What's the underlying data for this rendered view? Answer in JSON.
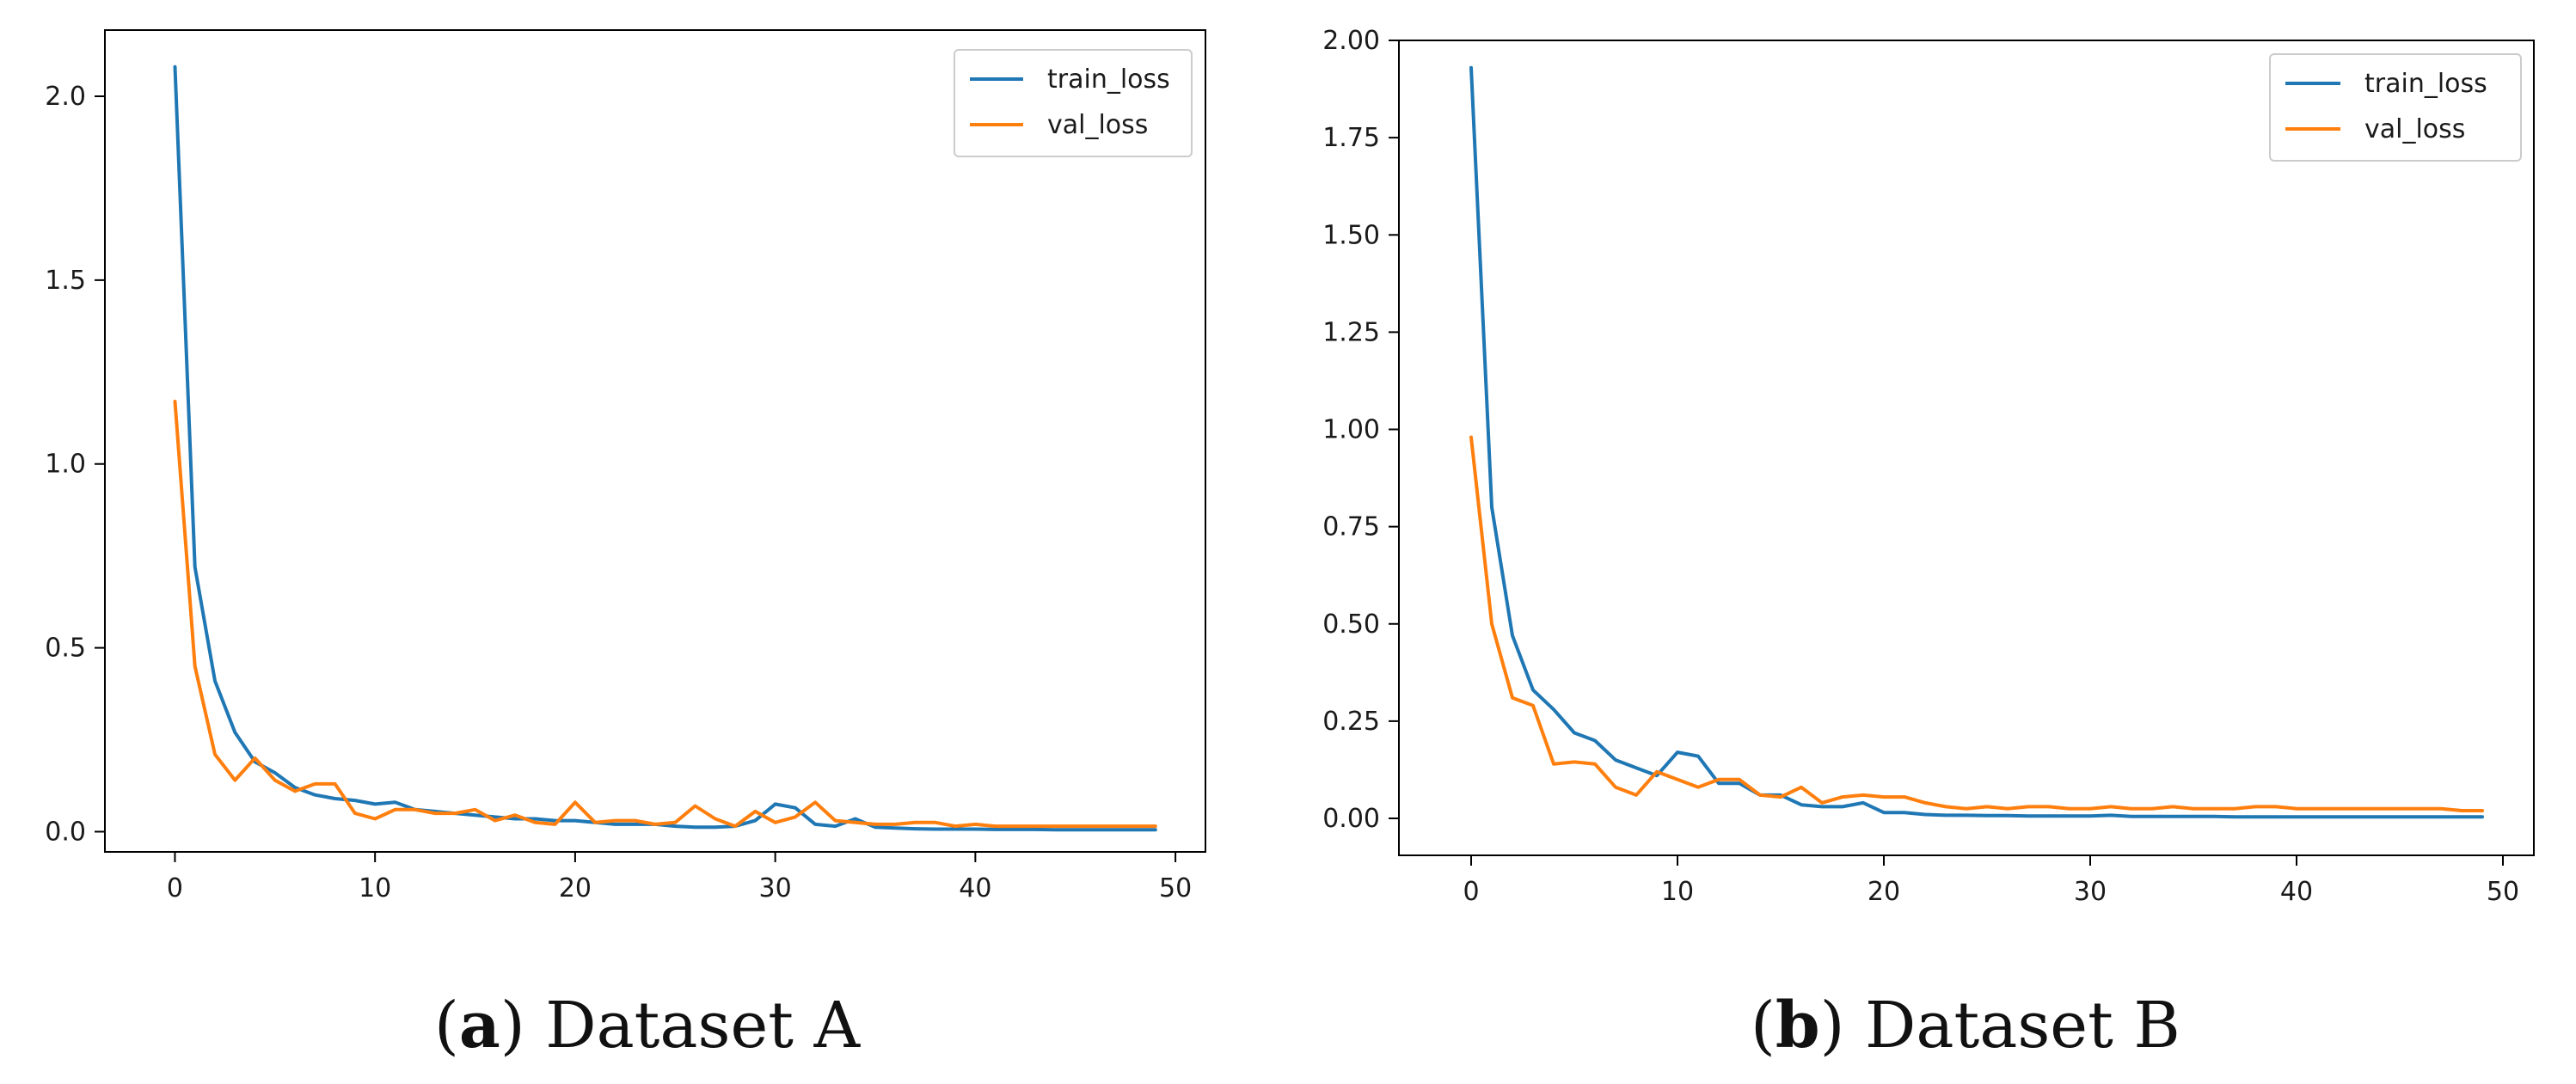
{
  "chart_data": [
    {
      "type": "line",
      "panel_label": "a",
      "caption": "Dataset A",
      "xlim": [
        -3.5,
        51.5
      ],
      "ylim": [
        -0.055,
        2.18
      ],
      "xticks": [
        0,
        10,
        20,
        30,
        40,
        50
      ],
      "yticks": [
        0.0,
        0.5,
        1.0,
        1.5,
        2.0
      ],
      "ytick_labels": [
        "0.0",
        "0.5",
        "1.0",
        "1.5",
        "2.0"
      ],
      "legend_position": "top-right",
      "series": [
        {
          "name": "train_loss",
          "color": "#1f77b4",
          "values": [
            2.08,
            0.72,
            0.41,
            0.27,
            0.19,
            0.16,
            0.12,
            0.1,
            0.09,
            0.085,
            0.075,
            0.08,
            0.06,
            0.055,
            0.05,
            0.045,
            0.04,
            0.035,
            0.035,
            0.03,
            0.03,
            0.025,
            0.02,
            0.02,
            0.02,
            0.015,
            0.012,
            0.012,
            0.015,
            0.03,
            0.075,
            0.065,
            0.02,
            0.015,
            0.035,
            0.012,
            0.01,
            0.008,
            0.007,
            0.007,
            0.007,
            0.006,
            0.006,
            0.006,
            0.005,
            0.005,
            0.005,
            0.005,
            0.005,
            0.005
          ]
        },
        {
          "name": "val_loss",
          "color": "#ff7f0e",
          "values": [
            1.17,
            0.45,
            0.21,
            0.14,
            0.2,
            0.14,
            0.11,
            0.13,
            0.13,
            0.05,
            0.035,
            0.06,
            0.06,
            0.05,
            0.05,
            0.06,
            0.03,
            0.045,
            0.025,
            0.02,
            0.08,
            0.025,
            0.03,
            0.03,
            0.02,
            0.025,
            0.07,
            0.035,
            0.015,
            0.055,
            0.025,
            0.04,
            0.08,
            0.03,
            0.025,
            0.02,
            0.02,
            0.025,
            0.025,
            0.015,
            0.02,
            0.015,
            0.015,
            0.015,
            0.015,
            0.015,
            0.015,
            0.015,
            0.015,
            0.015
          ]
        }
      ]
    },
    {
      "type": "line",
      "panel_label": "b",
      "caption": "Dataset B",
      "xlim": [
        -3.5,
        51.5
      ],
      "ylim": [
        -0.095,
        2.0
      ],
      "xticks": [
        0,
        10,
        20,
        30,
        40,
        50
      ],
      "yticks": [
        0.0,
        0.25,
        0.5,
        0.75,
        1.0,
        1.25,
        1.5,
        1.75,
        2.0
      ],
      "ytick_labels": [
        "0.00",
        "0.25",
        "0.50",
        "0.75",
        "1.00",
        "1.25",
        "1.50",
        "1.75",
        "2.00"
      ],
      "legend_position": "top-right",
      "series": [
        {
          "name": "train_loss",
          "color": "#1f77b4",
          "values": [
            1.93,
            0.8,
            0.47,
            0.33,
            0.28,
            0.22,
            0.2,
            0.15,
            0.13,
            0.11,
            0.17,
            0.16,
            0.09,
            0.09,
            0.06,
            0.06,
            0.035,
            0.03,
            0.03,
            0.04,
            0.015,
            0.015,
            0.01,
            0.008,
            0.008,
            0.007,
            0.007,
            0.006,
            0.006,
            0.006,
            0.006,
            0.008,
            0.005,
            0.005,
            0.005,
            0.005,
            0.005,
            0.004,
            0.004,
            0.004,
            0.004,
            0.004,
            0.004,
            0.004,
            0.004,
            0.004,
            0.004,
            0.004,
            0.004,
            0.004
          ]
        },
        {
          "name": "val_loss",
          "color": "#ff7f0e",
          "values": [
            0.98,
            0.5,
            0.31,
            0.29,
            0.14,
            0.145,
            0.14,
            0.08,
            0.06,
            0.12,
            0.1,
            0.08,
            0.1,
            0.1,
            0.06,
            0.055,
            0.08,
            0.04,
            0.055,
            0.06,
            0.055,
            0.055,
            0.04,
            0.03,
            0.025,
            0.03,
            0.025,
            0.03,
            0.03,
            0.025,
            0.025,
            0.03,
            0.025,
            0.025,
            0.03,
            0.025,
            0.025,
            0.025,
            0.03,
            0.03,
            0.025,
            0.025,
            0.025,
            0.025,
            0.025,
            0.025,
            0.025,
            0.025,
            0.02,
            0.02
          ]
        }
      ]
    }
  ]
}
